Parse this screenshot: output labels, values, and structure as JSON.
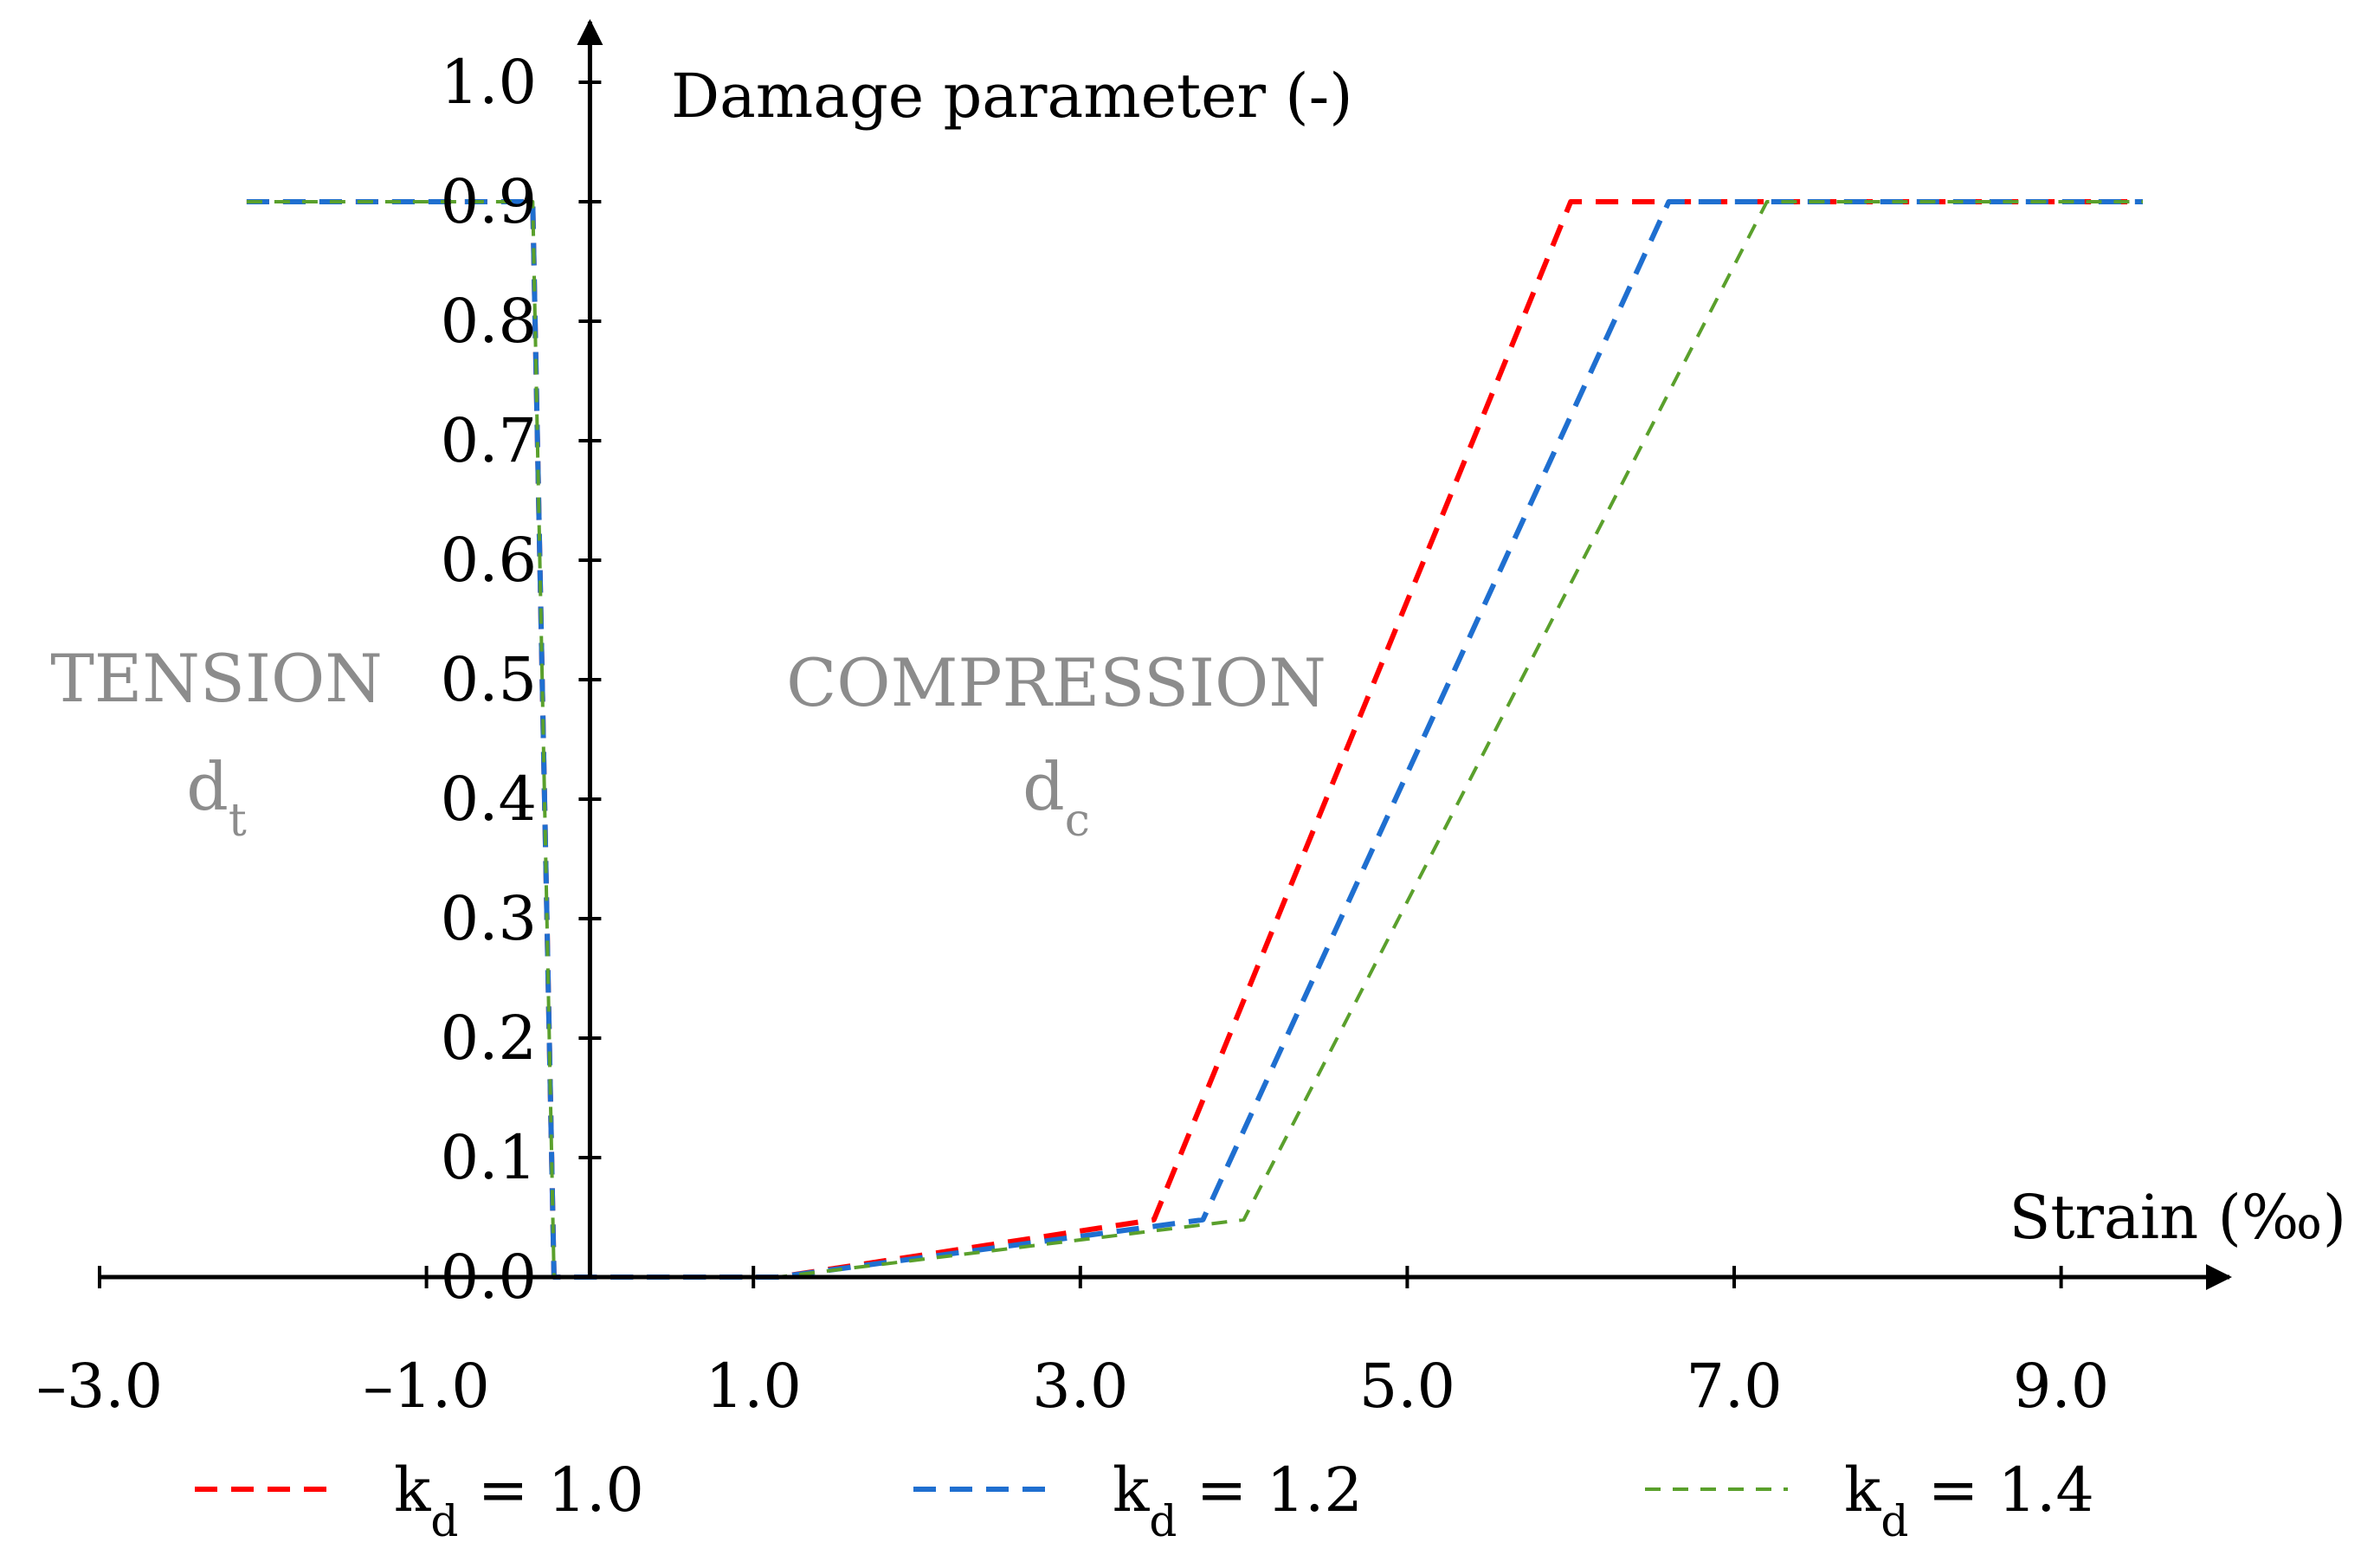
{
  "chart_data": {
    "type": "line",
    "title": "",
    "ylabel": "Damage parameter (-)",
    "xlabel": "Strain (‰)",
    "xlim": [
      -3.0,
      9.5
    ],
    "ylim": [
      0.0,
      1.0
    ],
    "xticks": [
      -3.0,
      -1.0,
      1.0,
      3.0,
      5.0,
      7.0,
      9.0
    ],
    "xtick_labels": [
      "–3.0",
      "–1.0",
      "1.0",
      "3.0",
      "5.0",
      "7.0",
      "9.0"
    ],
    "yticks": [
      0.0,
      0.1,
      0.2,
      0.3,
      0.4,
      0.5,
      0.6,
      0.7,
      0.8,
      0.9,
      1.0
    ],
    "ytick_labels": [
      "0.0",
      "0.1",
      "0.2",
      "0.3",
      "0.4",
      "0.5",
      "0.6",
      "0.7",
      "0.8",
      "0.9",
      "1.0"
    ],
    "grid": false,
    "legend_position": "bottom",
    "annotations": [
      {
        "text": "TENSION",
        "sub_main": "d",
        "sub": "t",
        "region": "tension"
      },
      {
        "text": "COMPRESSION",
        "sub_main": "d",
        "sub": "c",
        "region": "compression"
      }
    ],
    "series": [
      {
        "label_main": "k",
        "label_sub": "d",
        "label_value": " = 1.0",
        "color": "#ff0000",
        "dash": "long",
        "points": [
          [
            -2.1,
            0.9
          ],
          [
            -0.35,
            0.9
          ],
          [
            -0.22,
            0.0
          ],
          [
            1.15,
            0.0
          ],
          [
            3.45,
            0.048
          ],
          [
            6.0,
            0.9
          ],
          [
            9.5,
            0.9
          ]
        ]
      },
      {
        "label_main": "k",
        "label_sub": "d",
        "label_value": " = 1.2",
        "color": "#1f6fd0",
        "dash": "long",
        "points": [
          [
            -2.1,
            0.9
          ],
          [
            -0.35,
            0.9
          ],
          [
            -0.22,
            0.0
          ],
          [
            1.15,
            0.0
          ],
          [
            3.75,
            0.048
          ],
          [
            6.6,
            0.9
          ],
          [
            9.5,
            0.9
          ]
        ]
      },
      {
        "label_main": "k",
        "label_sub": "d",
        "label_value": " = 1.4",
        "color": "#5aa02c",
        "dash": "short",
        "points": [
          [
            -2.1,
            0.9
          ],
          [
            -0.35,
            0.9
          ],
          [
            -0.22,
            0.0
          ],
          [
            1.15,
            0.0
          ],
          [
            4.0,
            0.048
          ],
          [
            7.2,
            0.9
          ],
          [
            9.5,
            0.9
          ]
        ]
      }
    ]
  }
}
